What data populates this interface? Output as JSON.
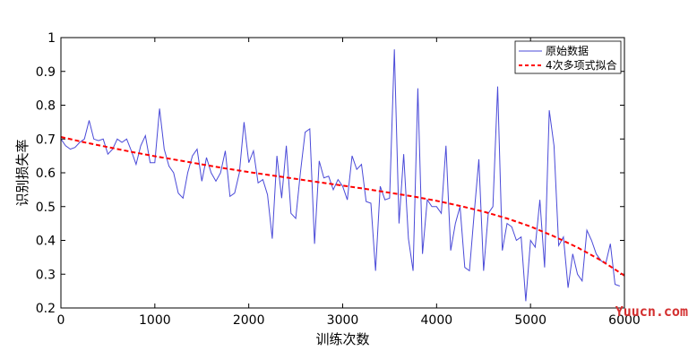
{
  "colors": {
    "raw_series": "#4a4ad8",
    "fit_series": "#ff0000",
    "axes": "#000000",
    "watermark": "#d32f2f"
  },
  "watermark": {
    "text": "Yuucn.com"
  },
  "chart_data": {
    "type": "line",
    "title": "",
    "xlabel": "训练次数",
    "ylabel": "识别损失率",
    "xlim": [
      0,
      6000
    ],
    "ylim": [
      0.2,
      1
    ],
    "xticks": [
      0,
      1000,
      2000,
      3000,
      4000,
      5000,
      6000
    ],
    "yticks": [
      0.2,
      0.3,
      0.4,
      0.5,
      0.6,
      0.7,
      0.8,
      0.9,
      1
    ],
    "grid": false,
    "legend_position": "top-right",
    "series": [
      {
        "name": "原始数据",
        "style": "solid",
        "x": [
          0,
          50,
          100,
          150,
          200,
          250,
          300,
          350,
          400,
          450,
          500,
          550,
          600,
          650,
          700,
          750,
          800,
          850,
          900,
          950,
          1000,
          1050,
          1100,
          1150,
          1200,
          1250,
          1300,
          1350,
          1400,
          1450,
          1500,
          1550,
          1600,
          1650,
          1700,
          1750,
          1800,
          1850,
          1900,
          1950,
          2000,
          2050,
          2100,
          2150,
          2200,
          2250,
          2300,
          2350,
          2400,
          2450,
          2500,
          2550,
          2600,
          2650,
          2700,
          2750,
          2800,
          2850,
          2900,
          2950,
          3000,
          3050,
          3100,
          3150,
          3200,
          3250,
          3300,
          3350,
          3400,
          3450,
          3500,
          3550,
          3600,
          3650,
          3700,
          3750,
          3800,
          3850,
          3900,
          3950,
          4000,
          4050,
          4100,
          4150,
          4200,
          4250,
          4300,
          4350,
          4400,
          4450,
          4500,
          4550,
          4600,
          4650,
          4700,
          4750,
          4800,
          4850,
          4900,
          4950,
          5000,
          5050,
          5100,
          5150,
          5200,
          5250,
          5300,
          5350,
          5400,
          5450,
          5500,
          5550,
          5600,
          5650,
          5700,
          5750,
          5800,
          5850,
          5900,
          5950
        ],
        "y": [
          0.7,
          0.68,
          0.67,
          0.675,
          0.69,
          0.7,
          0.755,
          0.7,
          0.695,
          0.7,
          0.655,
          0.67,
          0.7,
          0.69,
          0.7,
          0.665,
          0.625,
          0.68,
          0.71,
          0.63,
          0.63,
          0.79,
          0.67,
          0.62,
          0.6,
          0.54,
          0.525,
          0.6,
          0.65,
          0.67,
          0.575,
          0.645,
          0.6,
          0.575,
          0.6,
          0.665,
          0.53,
          0.54,
          0.6,
          0.75,
          0.63,
          0.665,
          0.57,
          0.58,
          0.535,
          0.405,
          0.65,
          0.525,
          0.68,
          0.48,
          0.465,
          0.6,
          0.72,
          0.73,
          0.39,
          0.635,
          0.585,
          0.59,
          0.55,
          0.58,
          0.56,
          0.52,
          0.65,
          0.61,
          0.625,
          0.515,
          0.51,
          0.31,
          0.56,
          0.52,
          0.525,
          0.965,
          0.45,
          0.655,
          0.405,
          0.31,
          0.85,
          0.36,
          0.52,
          0.5,
          0.5,
          0.48,
          0.68,
          0.37,
          0.45,
          0.5,
          0.32,
          0.31,
          0.48,
          0.64,
          0.31,
          0.48,
          0.5,
          0.855,
          0.37,
          0.45,
          0.44,
          0.4,
          0.41,
          0.22,
          0.4,
          0.38,
          0.52,
          0.32,
          0.785,
          0.68,
          0.385,
          0.41,
          0.26,
          0.36,
          0.3,
          0.28,
          0.43,
          0.4,
          0.36,
          0.34,
          0.33,
          0.39,
          0.27,
          0.265
        ]
      },
      {
        "name": "4次多项式拟合",
        "style": "dashed",
        "x": [
          0,
          250,
          500,
          750,
          1000,
          1250,
          1500,
          1750,
          2000,
          2250,
          2500,
          2750,
          3000,
          3250,
          3500,
          3750,
          4000,
          4250,
          4500,
          4750,
          5000,
          5250,
          5500,
          5750,
          6000
        ],
        "y": [
          0.706,
          0.69,
          0.676,
          0.662,
          0.649,
          0.637,
          0.625,
          0.613,
          0.602,
          0.592,
          0.582,
          0.572,
          0.562,
          0.552,
          0.541,
          0.53,
          0.517,
          0.502,
          0.485,
          0.465,
          0.441,
          0.412,
          0.379,
          0.341,
          0.296
        ]
      }
    ]
  }
}
